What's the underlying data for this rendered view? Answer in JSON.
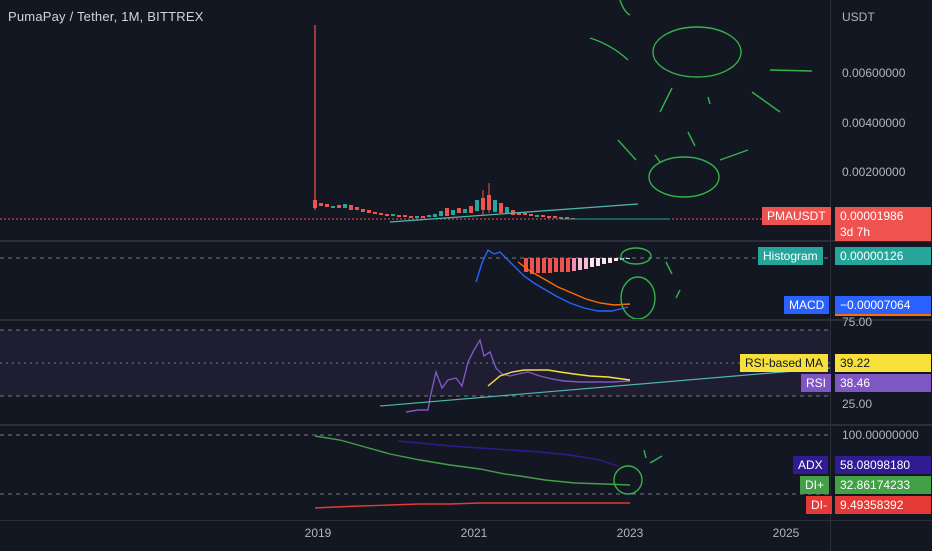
{
  "header": {
    "symbol_title": "PumaPay / Tether, 1M, BITTREX"
  },
  "price_scale": {
    "currency": "USDT",
    "ticks": [
      "0.00600000",
      "0.00400000",
      "0.00200000"
    ],
    "last_price": {
      "symbol": "PMAUSDT",
      "value": "0.00001986",
      "countdown": "3d 7h"
    }
  },
  "macd_pane": {
    "histogram": {
      "label": "Histogram",
      "value": "0.00000126"
    },
    "macd": {
      "label": "MACD",
      "value": "−0.00007064"
    }
  },
  "rsi_pane": {
    "level_top": "75.00",
    "level_bottom": "25.00",
    "rsi_ma": {
      "label": "RSI-based MA",
      "value": "39.22"
    },
    "rsi": {
      "label": "RSI",
      "value": "38.46"
    }
  },
  "adx_pane": {
    "top_level": "100.00000000",
    "adx": {
      "label": "ADX",
      "value": "58.08098180"
    },
    "di_plus": {
      "label": "DI+",
      "value": "32.86174233"
    },
    "di_minus": {
      "label": "DI-",
      "value": "9.49358392"
    }
  },
  "time_axis": {
    "labels": [
      "2019",
      "2021",
      "2023",
      "2025"
    ]
  },
  "colors": {
    "background": "#131722",
    "up_candle": "#26a69a",
    "down_candle": "#ef5350",
    "macd_line": "#2962ff",
    "signal_line": "#ff6d00",
    "rsi_line": "#7e57c2",
    "rsi_ma_line": "#f7e03c",
    "adx_line": "#311b92",
    "di_plus": "#43a047",
    "di_minus": "#e53935",
    "drawing_green": "#36b24a",
    "trend_teal": "#4db6ac"
  }
}
